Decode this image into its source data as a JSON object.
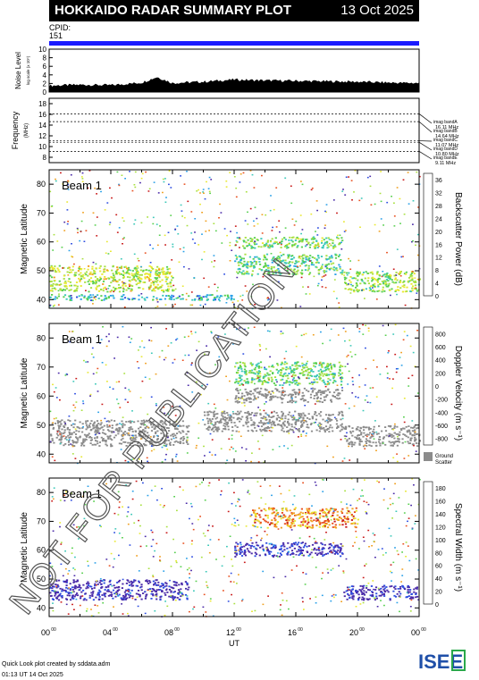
{
  "header": {
    "title": "HOKKAIDO RADAR SUMMARY PLOT",
    "date": "13 Oct 2025"
  },
  "cpid": {
    "label": "CPID:",
    "value": "151"
  },
  "noise": {
    "ylabel": "Noise Level",
    "sublabel": "log scale (x 10⁴)",
    "ticks": [
      "0",
      "2",
      "4",
      "6",
      "8",
      "10"
    ],
    "ylim": [
      0,
      10
    ]
  },
  "frequency": {
    "ylabel": "Frequency",
    "unit": "(MHz)",
    "ticks": [
      "8",
      "10",
      "12",
      "14",
      "16",
      "18"
    ],
    "ylim": [
      7,
      19
    ],
    "bands": [
      {
        "name": "imag bandA",
        "value": "16.11 MHz",
        "freq": 16.11
      },
      {
        "name": "imag bandB",
        "value": "14.64 MHz",
        "freq": 14.64
      },
      {
        "name": "imag bandC",
        "value": "11.07 MHz",
        "freq": 11.07
      },
      {
        "name": "imag bandD",
        "value": "10.80 MHz",
        "freq": 10.8
      },
      {
        "name": "imag bandE",
        "value": "9.11 MHz",
        "freq": 9.11
      }
    ]
  },
  "panels": [
    {
      "beam": "Beam  1",
      "ylabel": "Magnetic Latitude",
      "ylim": [
        37,
        85
      ],
      "yticks": [
        "40",
        "50",
        "60",
        "70",
        "80"
      ],
      "cbar_label": "Backscatter Power (dB)",
      "cbar_ticks": [
        "0",
        "4",
        "8",
        "12",
        "16",
        "20",
        "24",
        "28",
        "32",
        "36"
      ],
      "cbar_range": [
        0,
        38
      ],
      "colorscale": "power"
    },
    {
      "beam": "Beam  1",
      "ylabel": "Magnetic Latitude",
      "ylim": [
        37,
        85
      ],
      "yticks": [
        "40",
        "50",
        "60",
        "70",
        "80"
      ],
      "cbar_label": "Doppler Velocity (m s⁻¹)",
      "cbar_ticks": [
        "-800",
        "-600",
        "-400",
        "-200",
        "0",
        "200",
        "400",
        "600",
        "800"
      ],
      "cbar_range": [
        -900,
        900
      ],
      "colorscale": "velocity",
      "ground_label": "Ground",
      "ground_label2": "Scatter"
    },
    {
      "beam": "Beam  1",
      "ylabel": "Magnetic Latitude",
      "ylim": [
        37,
        85
      ],
      "yticks": [
        "40",
        "50",
        "60",
        "70",
        "80"
      ],
      "cbar_label": "Spectral Width (m s⁻¹)",
      "cbar_ticks": [
        "0",
        "20",
        "40",
        "60",
        "80",
        "100",
        "120",
        "140",
        "160",
        "180"
      ],
      "cbar_range": [
        0,
        190
      ],
      "colorscale": "width"
    }
  ],
  "xaxis": {
    "label": "UT",
    "ticks": [
      "00",
      "04",
      "08",
      "12",
      "16",
      "20",
      "00"
    ],
    "tick_sup": "00",
    "xlim": [
      0,
      24
    ]
  },
  "footer": {
    "line1": "Quick Look plot created by sddata.adm",
    "line2": "01:13 UT 14 Oct 2025"
  },
  "logo": {
    "text": "ISEE",
    "colors": [
      "#1f4fa8",
      "#2aa84a",
      "#e8b021"
    ]
  },
  "watermark": {
    "text": "NOT FOR PUBLICATION",
    "color": "#555555"
  },
  "chart_data": [
    {
      "type": "area",
      "title": "",
      "ylabel": "Noise Level",
      "ylim": [
        0,
        10
      ],
      "x": [
        0,
        2,
        4,
        6,
        7,
        8,
        10,
        12,
        14,
        16,
        18,
        20,
        22,
        24
      ],
      "values": [
        1.2,
        1.4,
        1.3,
        1.9,
        3.2,
        1.8,
        2.1,
        2.6,
        2.4,
        2.3,
        2.2,
        2.1,
        1.9,
        1.8
      ]
    },
    {
      "type": "line",
      "ylabel": "Frequency",
      "ylim": [
        7,
        19
      ],
      "series": [
        {
          "name": "imag bandA",
          "values": [
            16.11
          ]
        },
        {
          "name": "imag bandB",
          "values": [
            14.64
          ]
        },
        {
          "name": "imag bandC",
          "values": [
            11.07
          ]
        },
        {
          "name": "imag bandD",
          "values": [
            10.8
          ]
        },
        {
          "name": "imag bandE",
          "values": [
            9.11
          ]
        }
      ]
    },
    {
      "type": "heatmap",
      "ylabel": "Magnetic Latitude",
      "xlabel": "UT",
      "quantity": "Backscatter Power (dB)",
      "regions": [
        {
          "t": [
            0,
            8
          ],
          "lat": [
            43,
            52
          ],
          "value": 22
        },
        {
          "t": [
            0,
            12
          ],
          "lat": [
            40,
            42
          ],
          "value": 12
        },
        {
          "t": [
            12,
            19
          ],
          "lat": [
            58,
            62
          ],
          "value": 18
        },
        {
          "t": [
            12,
            19
          ],
          "lat": [
            49,
            56
          ],
          "value": 16
        },
        {
          "t": [
            19,
            24
          ],
          "lat": [
            43,
            50
          ],
          "value": 20
        }
      ]
    },
    {
      "type": "heatmap",
      "ylabel": "Magnetic Latitude",
      "xlabel": "UT",
      "quantity": "Doppler Velocity (m s⁻¹)",
      "regions": [
        {
          "t": [
            0,
            9
          ],
          "lat": [
            43,
            52
          ],
          "value": "ground"
        },
        {
          "t": [
            12,
            19
          ],
          "lat": [
            58,
            63
          ],
          "value": "ground"
        },
        {
          "t": [
            10,
            19
          ],
          "lat": [
            48,
            55
          ],
          "value": "ground"
        },
        {
          "t": [
            12,
            19
          ],
          "lat": [
            64,
            72
          ],
          "value": 100
        },
        {
          "t": [
            19,
            24
          ],
          "lat": [
            43,
            50
          ],
          "value": "ground"
        }
      ]
    },
    {
      "type": "heatmap",
      "ylabel": "Magnetic Latitude",
      "xlabel": "UT",
      "quantity": "Spectral Width (m s⁻¹)",
      "regions": [
        {
          "t": [
            0,
            9
          ],
          "lat": [
            43,
            50
          ],
          "value": 10
        },
        {
          "t": [
            12,
            19
          ],
          "lat": [
            58,
            63
          ],
          "value": 10
        },
        {
          "t": [
            13,
            20
          ],
          "lat": [
            68,
            75
          ],
          "value": 150
        },
        {
          "t": [
            19,
            24
          ],
          "lat": [
            43,
            48
          ],
          "value": 10
        }
      ]
    }
  ]
}
